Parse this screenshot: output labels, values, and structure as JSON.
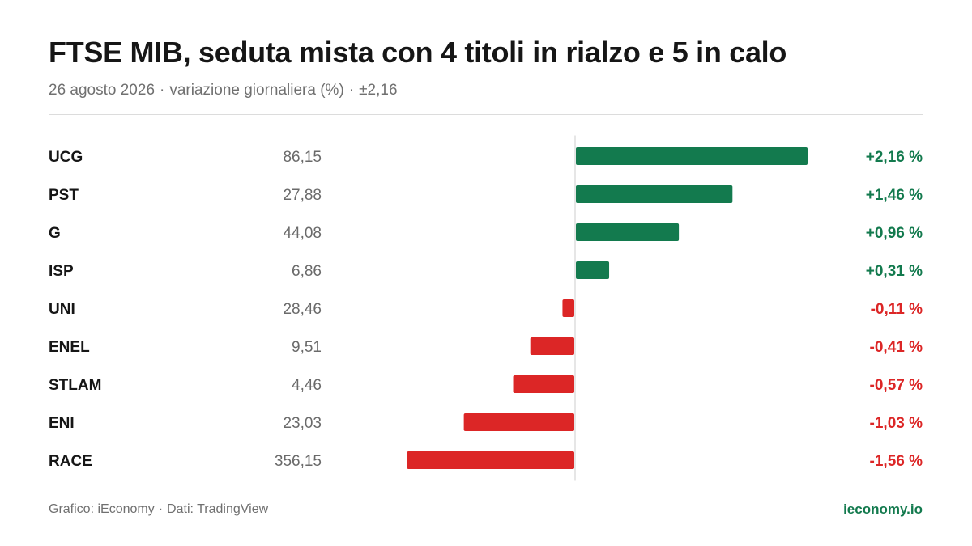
{
  "header": {
    "title": "FTSE MIB, seduta mista con 4 titoli in rialzo e 5 in calo",
    "subtitle_date": "26 agosto 2026",
    "subtitle_metric": "variazione giornaliera (%)",
    "subtitle_range": "±2,16",
    "separator": "·"
  },
  "footer": {
    "credit_chart": "Grafico: iEconomy",
    "credit_data": "Dati: TradingView",
    "separator": "·",
    "brand": "ieconomy.io"
  },
  "colors": {
    "positive": "#137a4e",
    "negative": "#dc2626",
    "ticker": "#161616",
    "price": "#6a6a6a",
    "axis": "#d6d6d6",
    "brand": "#137a4e"
  },
  "chart_data": {
    "type": "bar",
    "orientation": "horizontal",
    "xlim": [
      -2.16,
      2.16
    ],
    "grid": false,
    "legend": "none",
    "categories": [
      "UCG",
      "PST",
      "G",
      "ISP",
      "UNI",
      "ENEL",
      "STLAM",
      "ENI",
      "RACE"
    ],
    "prices": [
      "86,15",
      "27,88",
      "44,08",
      "6,86",
      "28,46",
      "9,51",
      "4,46",
      "23,03",
      "356,15"
    ],
    "values": [
      2.16,
      1.46,
      0.96,
      0.31,
      -0.11,
      -0.41,
      -0.57,
      -1.03,
      -1.56
    ],
    "value_labels": [
      "+2,16 %",
      "+1,46 %",
      "+0,96 %",
      "+0,31 %",
      "-0,11 %",
      "-0,41 %",
      "-0,57 %",
      "-1,03 %",
      "-1,56 %"
    ]
  }
}
